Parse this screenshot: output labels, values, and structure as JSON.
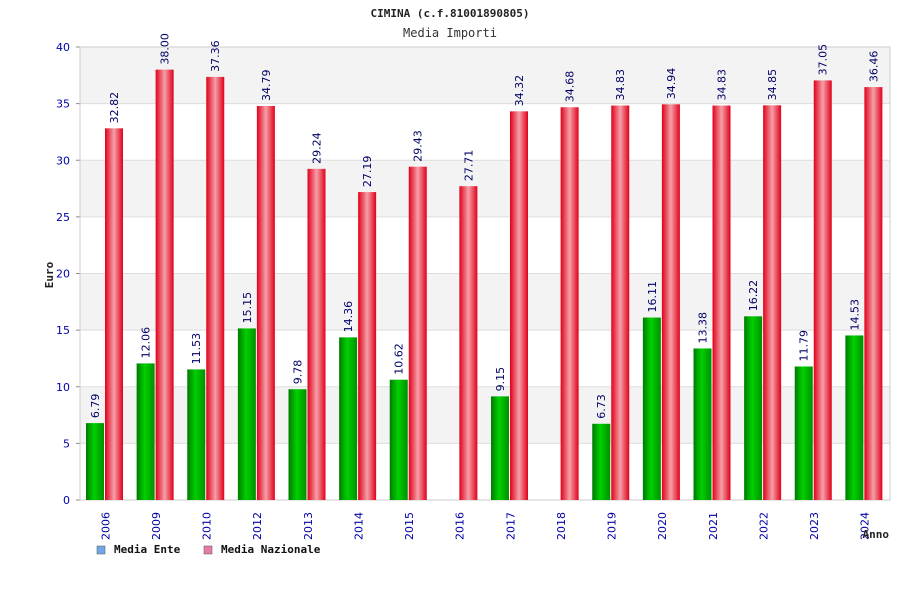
{
  "title": "CIMINA (c.f.81001890805)",
  "subtitle": "Media Importi",
  "chart_data": {
    "type": "bar",
    "title": "CIMINA (c.f.81001890805)",
    "subtitle": "Media Importi",
    "xlabel": "Anno",
    "ylabel": "Euro",
    "ylim": [
      0,
      40
    ],
    "yticks": [
      0,
      5,
      10,
      15,
      20,
      25,
      30,
      35,
      40
    ],
    "grid": true,
    "legend_position": "bottom-left",
    "categories": [
      "2006",
      "2009",
      "2010",
      "2012",
      "2013",
      "2014",
      "2015",
      "2016",
      "2017",
      "2018",
      "2019",
      "2020",
      "2021",
      "2022",
      "2023",
      "2024"
    ],
    "series": [
      {
        "name": "Media Ente",
        "color": "#00b400",
        "legend_color": "#6fa8e8",
        "values": [
          6.79,
          12.06,
          11.53,
          15.15,
          9.78,
          14.36,
          10.62,
          null,
          9.15,
          null,
          6.73,
          16.11,
          13.38,
          16.22,
          11.79,
          14.53
        ],
        "labels": [
          "6.79",
          "12.06",
          "11.53",
          "15.15",
          "9.78",
          "14.36",
          "10.62",
          "",
          "9.15",
          "",
          "6.73",
          "16.11",
          "13.38",
          "16.22",
          "11.79",
          "14.53"
        ]
      },
      {
        "name": "Media Nazionale",
        "color": "#e8182a",
        "legend_color": "#e87aa8",
        "values": [
          32.82,
          38.0,
          37.36,
          34.79,
          29.24,
          27.19,
          29.43,
          27.71,
          34.32,
          34.68,
          34.83,
          34.94,
          34.83,
          34.85,
          37.05,
          36.46
        ],
        "labels": [
          "32.82",
          "38.00",
          "37.36",
          "34.79",
          "29.24",
          "27.19",
          "29.43",
          "27.71",
          "34.32",
          "34.68",
          "34.83",
          "34.94",
          "34.83",
          "34.85",
          "37.05",
          "36.46"
        ]
      }
    ]
  }
}
